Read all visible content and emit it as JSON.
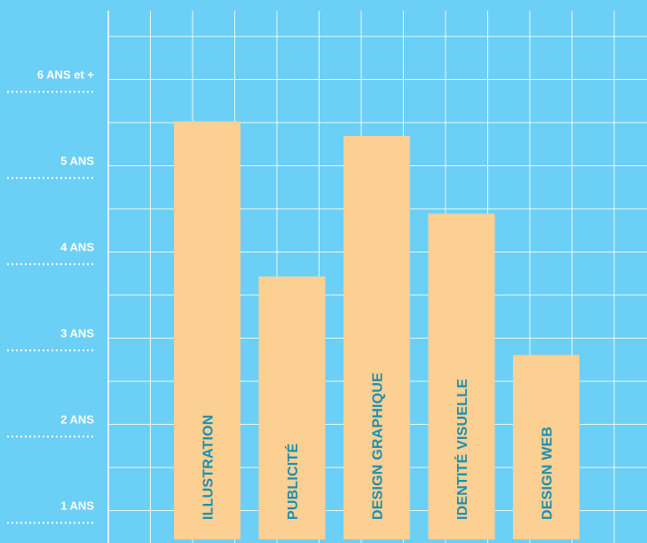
{
  "chart_data": {
    "type": "bar",
    "orientation": "vertical",
    "categories": [
      "ILLUSTRATION",
      "PUBLICITÉ",
      "DESIGN GRAPHIQUE",
      "IDENTITÉ VISUELLE",
      "DESIGN WEB"
    ],
    "values": [
      5.75,
      3.95,
      5.58,
      4.68,
      3.04
    ],
    "y_ticks": [
      {
        "value": 1,
        "label": "1 ANS"
      },
      {
        "value": 2,
        "label": "2 ANS"
      },
      {
        "value": 3,
        "label": "3 ANS"
      },
      {
        "value": 4,
        "label": "4 ANS"
      },
      {
        "value": 5,
        "label": "5 ANS"
      },
      {
        "value": 6,
        "label": "6 ANS et +"
      }
    ],
    "ylim": [
      0.9,
      6.2
    ],
    "grid": true,
    "bar_labels_inside": "vertical",
    "colors": {
      "background": "#6ccff6",
      "grid": "#ffffff",
      "bar": "#fccf92",
      "bar_label": "#1a8fb0",
      "tick_label": "#ffffff"
    }
  }
}
